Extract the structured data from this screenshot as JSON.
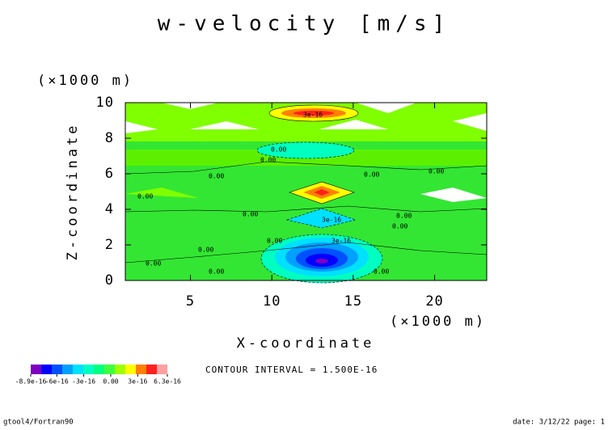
{
  "chart_data": {
    "type": "contour",
    "title": "w-velocity [m/s]",
    "x_label": "X-coordinate",
    "y_label": "Z-coordinate",
    "x_unit": "(×1000 m)",
    "y_unit": "(×1000 m)",
    "xlim": [
      1,
      23.2
    ],
    "xticks": [
      5,
      10,
      15,
      20
    ],
    "ylim": [
      0,
      10
    ],
    "yticks": [
      0,
      2,
      4,
      6,
      8,
      10
    ],
    "contour_labels": [
      {
        "value": 3e-16,
        "label": "3e-16"
      },
      {
        "value": 0,
        "label": "0.00"
      },
      {
        "value": 0,
        "label": "0.00"
      },
      {
        "value": 0,
        "label": "0.00"
      },
      {
        "value": 0,
        "label": "0.00"
      },
      {
        "value": 0,
        "label": "0.00"
      },
      {
        "value": 0,
        "label": "0.00"
      },
      {
        "value": 0,
        "label": "0.00"
      },
      {
        "value": 3e-16,
        "label": "3e-16"
      },
      {
        "value": 0,
        "label": "0.00"
      },
      {
        "value": 0,
        "label": "0.00"
      },
      {
        "value": 3e-16,
        "label": "3e-16"
      },
      {
        "value": 0,
        "label": "0.00"
      },
      {
        "value": 0,
        "label": "0.00"
      },
      {
        "value": 0,
        "label": "0.00"
      },
      {
        "value": 0,
        "label": "0.00"
      },
      {
        "value": 0,
        "label": "0.00"
      }
    ],
    "colorbar": {
      "colors": [
        "#7f00bf",
        "#0000ff",
        "#0050ff",
        "#00a0ff",
        "#00e0ff",
        "#00ffc0",
        "#00ff80",
        "#40ff40",
        "#a0ff00",
        "#ffff00",
        "#ff8000",
        "#ff2020",
        "#ffa0a0"
      ],
      "lim": [
        -8.9e-16,
        6.3e-16
      ],
      "ticks": [
        {
          "value": -8.9e-16,
          "label": "-8.9e-16"
        },
        {
          "value": -6e-16,
          "label": "-6e-16"
        },
        {
          "value": -3e-16,
          "label": "-3e-16"
        },
        {
          "value": 0,
          "label": "0.00"
        },
        {
          "value": 3e-16,
          "label": "3e-16"
        },
        {
          "value": 6.3e-16,
          "label": "6.3e-16"
        }
      ]
    },
    "contour_interval": "CONTOUR INTERVAL = 1.500E-16",
    "footer_left": "gtool4/Fortran90",
    "footer_right": "date: 3/12/22 page: 1"
  }
}
